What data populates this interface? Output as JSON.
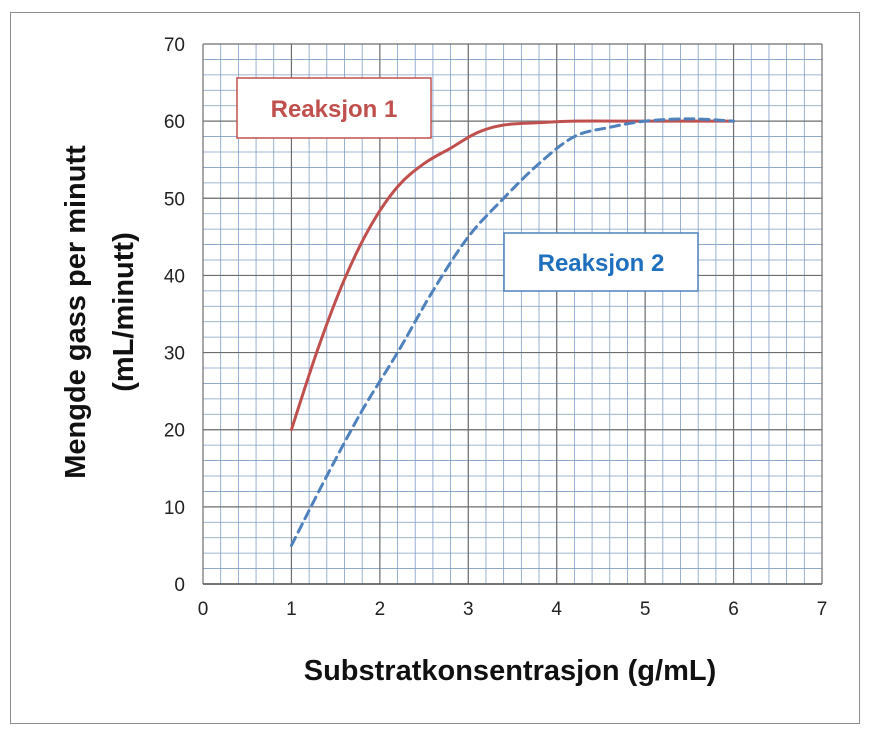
{
  "chart_data": {
    "type": "line",
    "xlabel": "Substratkonsentrasjon  (g/mL)",
    "ylabel": [
      "Mengde gass per minutt",
      "(mL/minutt)"
    ],
    "xlim": [
      0,
      7
    ],
    "ylim": [
      0,
      70
    ],
    "x_ticks": [
      0,
      1,
      2,
      3,
      4,
      5,
      6,
      7
    ],
    "y_ticks": [
      0,
      10,
      20,
      30,
      40,
      50,
      60,
      70
    ],
    "x_minor_per_major": 5,
    "y_minor_per_major": 5,
    "grid": true,
    "series": [
      {
        "name": "Reaksjon 1",
        "color": "#c0504d",
        "dash": "solid",
        "x": [
          1.0,
          1.3,
          1.6,
          1.9,
          2.2,
          2.5,
          2.8,
          3.1,
          3.4,
          3.8,
          4.2,
          5.0,
          6.0
        ],
        "y": [
          20,
          30.5,
          39.5,
          46.5,
          51.5,
          54.5,
          56.5,
          58.5,
          59.5,
          59.8,
          60,
          60,
          60
        ]
      },
      {
        "name": "Reaksjon 2",
        "color": "#4f81bd",
        "dash": "dashed",
        "x": [
          1.0,
          1.4,
          1.8,
          2.2,
          2.6,
          3.0,
          3.4,
          3.8,
          4.2,
          4.6,
          5.0,
          5.5,
          6.0
        ],
        "y": [
          5,
          14,
          22.5,
          30,
          38,
          45,
          50,
          54.5,
          58,
          59.2,
          60,
          60.3,
          60
        ]
      }
    ],
    "labels": [
      {
        "text": "Reaksjon 1",
        "color": "#c0504d",
        "anchor": "upper-left"
      },
      {
        "text": "Reaksjon 2",
        "color": "#1f6fbf",
        "anchor": "right-middle"
      }
    ]
  }
}
